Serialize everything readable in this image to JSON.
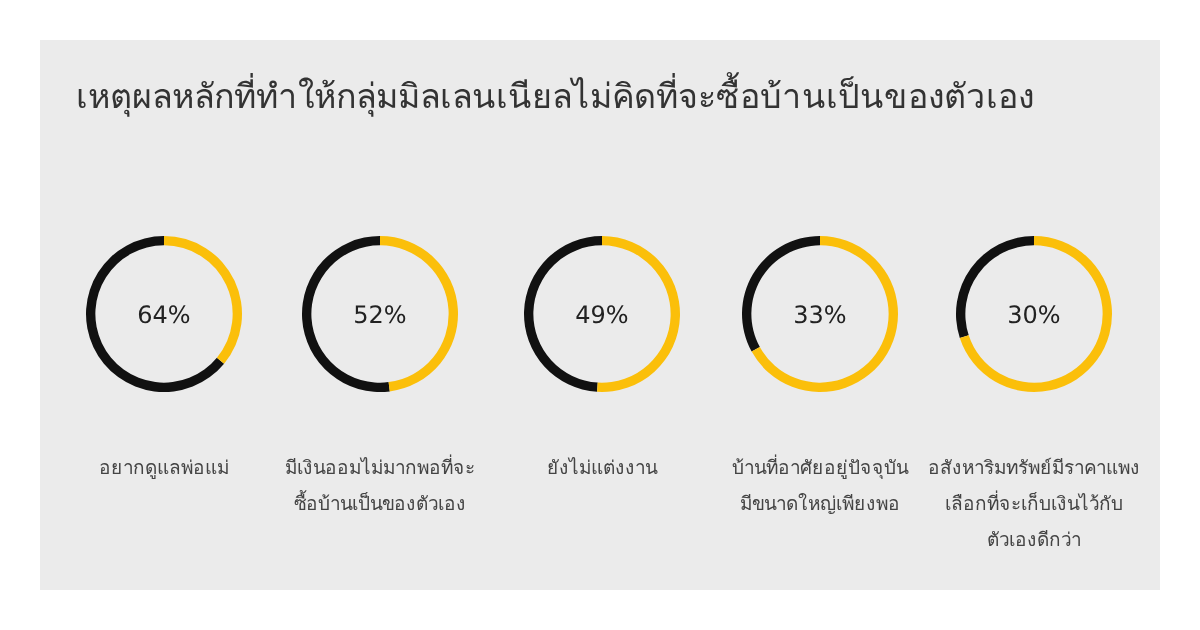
{
  "chart_data": [
    {
      "type": "donut",
      "title": "เหตุผลหลักที่ทำให้กลุ่มมิลเลนเนียลไม่คิดที่จะซื้อบ้านเป็นของตัวเอง",
      "xlabel": "อยากดูแลพ่อแม่",
      "categories": [
        null,
        null
      ],
      "values": [
        64,
        36
      ],
      "colors": [
        "#111111",
        "#fbbf0a"
      ],
      "annotations": [
        "64%"
      ]
    },
    {
      "type": "donut",
      "xlabel": "มีเงินออมไม่มากพอที่จะ\nซื้อบ้านเป็นของตัวเอง",
      "categories": [
        null,
        null
      ],
      "values": [
        52,
        48
      ],
      "colors": [
        "#111111",
        "#fbbf0a"
      ],
      "annotations": [
        "52%"
      ]
    },
    {
      "type": "donut",
      "xlabel": "ยังไม่แต่งงาน",
      "categories": [
        null,
        null
      ],
      "values": [
        49,
        51
      ],
      "colors": [
        "#111111",
        "#fbbf0a"
      ],
      "annotations": [
        "49%"
      ]
    },
    {
      "type": "donut",
      "xlabel": "บ้านที่อาศัยอยู่ปัจจุบัน\nมีขนาดใหญ่เพียงพอ",
      "categories": [
        null,
        null
      ],
      "values": [
        33,
        67
      ],
      "colors": [
        "#111111",
        "#fbbf0a"
      ],
      "annotations": [
        "33%"
      ]
    },
    {
      "type": "donut",
      "xlabel": "อสังหาริมทรัพย์มีราคาแพง\nเลือกที่จะเก็บเงินไว้กับ\nตัวเองดีกว่า",
      "categories": [
        null,
        null
      ],
      "values": [
        30,
        70
      ],
      "colors": [
        "#111111",
        "#fbbf0a"
      ],
      "annotations": [
        "30%"
      ]
    }
  ]
}
